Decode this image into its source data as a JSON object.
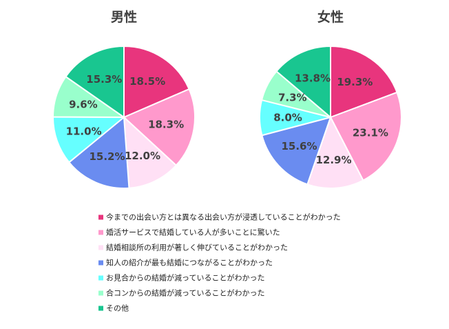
{
  "chart_data": {
    "type": "pie",
    "categories": [
      "今までの出会い方とは異なる出会い方が浸透していることがわかった",
      "婚活サービスで結婚している人が多いことに驚いた",
      "結婚相談所の利用が著しく伸びていることがわかった",
      "知人の紹介が最も結婚につながることがわかった",
      "お見合からの結婚が減っていることがわかった",
      "合コンからの結婚が減っていることがわかった",
      "その他"
    ],
    "colors": [
      "#e8357d",
      "#ff99cc",
      "#ffe0f5",
      "#6a8cf0",
      "#66ffff",
      "#99ffcc",
      "#19c690"
    ],
    "legend_position": "bottom",
    "series": [
      {
        "name": "男性",
        "values": [
          18.5,
          18.3,
          12.0,
          15.2,
          11.0,
          9.6,
          15.3
        ],
        "labels": [
          "18.5%",
          "18.3%",
          "12.0%",
          "15.2%",
          "11.0%",
          "9.6%",
          "15.3%"
        ]
      },
      {
        "name": "女性",
        "values": [
          19.3,
          23.1,
          12.9,
          15.6,
          8.0,
          7.3,
          13.8
        ],
        "labels": [
          "19.3%",
          "23.1%",
          "12.9%",
          "15.6%",
          "8.0%",
          "7.3%",
          "13.8%"
        ]
      }
    ]
  }
}
